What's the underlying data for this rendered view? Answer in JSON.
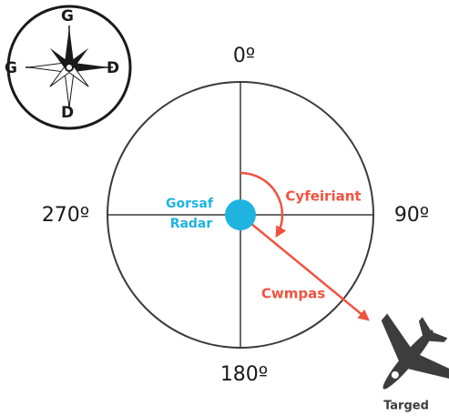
{
  "compass": {
    "north": "G",
    "west": "G",
    "east": "D",
    "south": "D"
  },
  "degrees": {
    "top": "0º",
    "right": "90º",
    "bottom": "180º",
    "left": "270º"
  },
  "station": {
    "line1": "Gorsaf",
    "line2": "Radar"
  },
  "bearing_label": "Cyfeiriant",
  "range_label": "Cwmpas",
  "target_label": "Targed"
}
